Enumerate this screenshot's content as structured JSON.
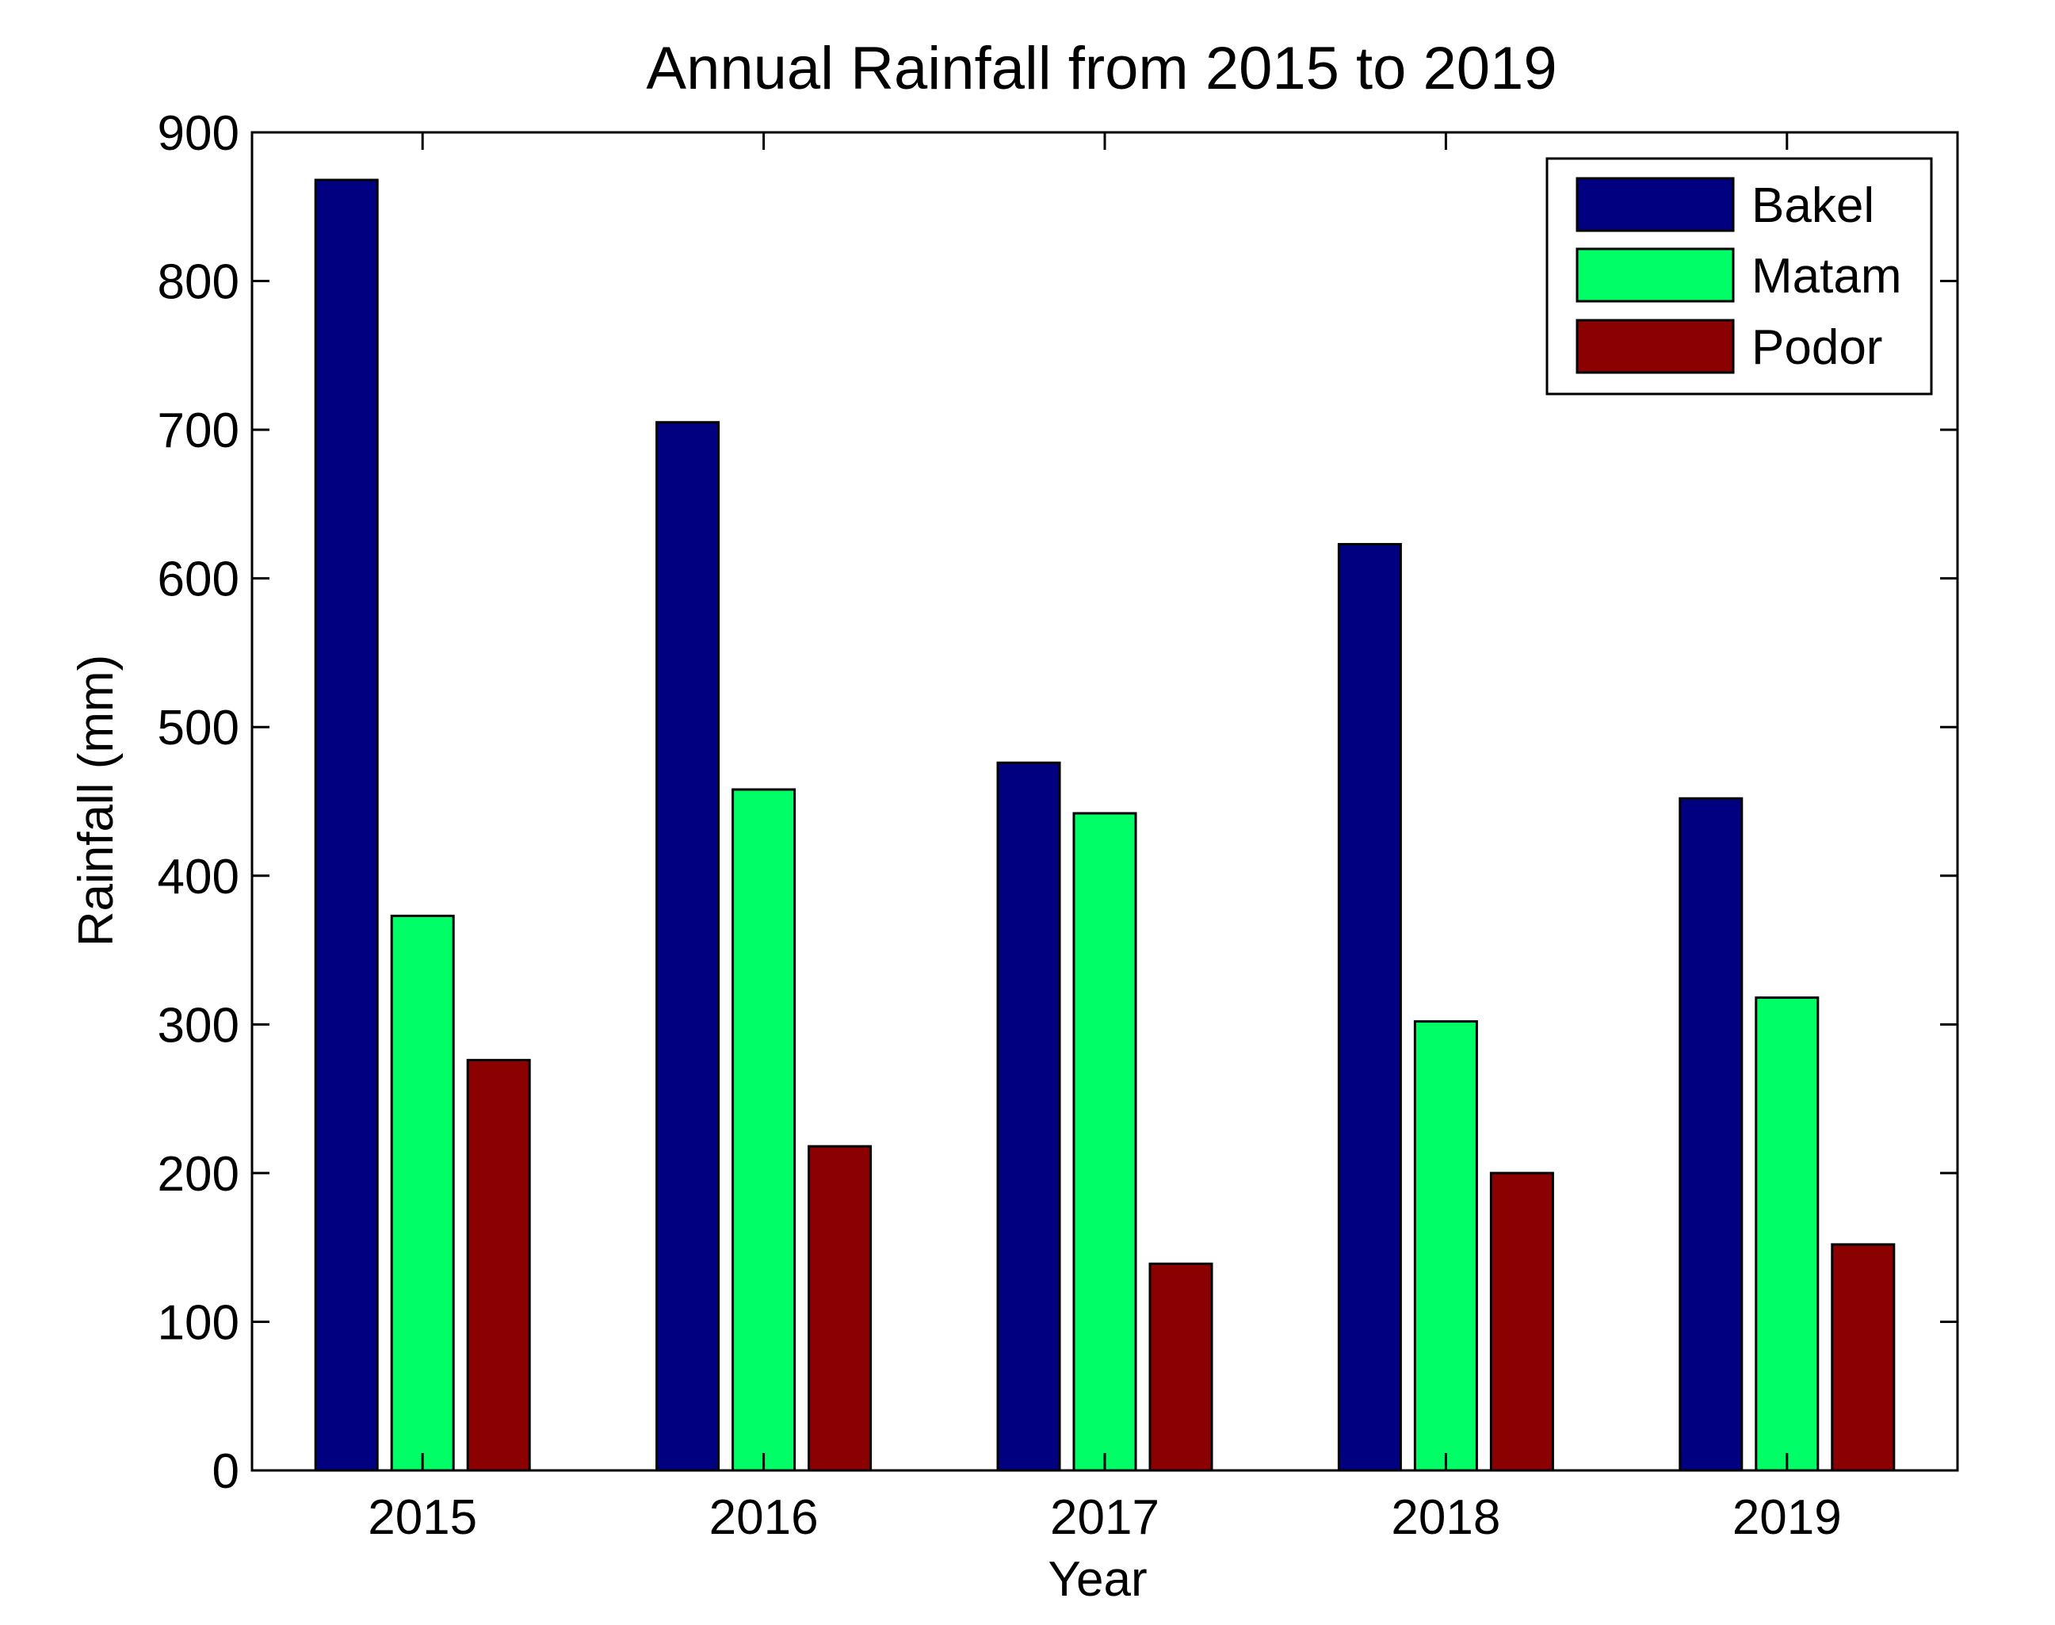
{
  "chart_data": {
    "type": "bar",
    "title": "Annual Rainfall from 2015 to 2019",
    "xlabel": "Year",
    "ylabel": "Rainfall (mm)",
    "categories": [
      "2015",
      "2016",
      "2017",
      "2018",
      "2019"
    ],
    "ylim": [
      0,
      900
    ],
    "yticks": [
      0,
      100,
      200,
      300,
      400,
      500,
      600,
      700,
      800,
      900
    ],
    "ytick_labels": [
      "0",
      "100",
      "200",
      "300",
      "400",
      "500",
      "600",
      "700",
      "800",
      "900"
    ],
    "grid": false,
    "legend_position": "top-right",
    "series": [
      {
        "name": "Bakel",
        "color": "#000080",
        "values": [
          868,
          705,
          476,
          623,
          452
        ]
      },
      {
        "name": "Matam",
        "color": "#00ff66",
        "values": [
          373,
          458,
          442,
          302,
          318
        ]
      },
      {
        "name": "Podor",
        "color": "#8b0000",
        "values": [
          276,
          218,
          139,
          200,
          152
        ]
      }
    ]
  }
}
